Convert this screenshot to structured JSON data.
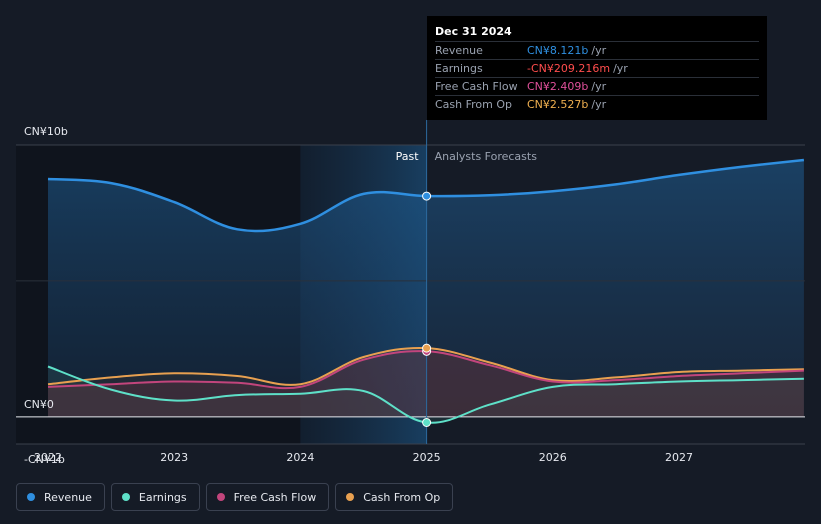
{
  "chart_data": {
    "type": "area",
    "title": "",
    "xlabel": "",
    "ylabel": "",
    "x_ticks": [
      "2022",
      "2023",
      "2024",
      "2025",
      "2026",
      "2027"
    ],
    "x_range": [
      2021.79,
      2027.99
    ],
    "y_range": [
      -1.0,
      10.0
    ],
    "y_ticks": [
      {
        "value": 10,
        "label": "CN¥10b"
      },
      {
        "value": 0,
        "label": "CN¥0"
      },
      {
        "value": -1,
        "label": "-CN¥1b"
      }
    ],
    "sections": {
      "past": "Past",
      "forecast": "Analysts Forecasts"
    },
    "split_x": 2025.0,
    "highlight_range": [
      2024.0,
      2025.0
    ],
    "series": [
      {
        "name": "Revenue",
        "color": "#2f8fe0",
        "points": [
          [
            2022.0,
            8.75
          ],
          [
            2022.5,
            8.6
          ],
          [
            2023.0,
            7.9
          ],
          [
            2023.5,
            6.9
          ],
          [
            2024.0,
            7.1
          ],
          [
            2024.5,
            8.2
          ],
          [
            2025.0,
            8.121
          ],
          [
            2025.5,
            8.15
          ],
          [
            2026.0,
            8.3
          ],
          [
            2026.5,
            8.55
          ],
          [
            2027.0,
            8.9
          ],
          [
            2027.5,
            9.2
          ],
          [
            2027.99,
            9.45
          ]
        ]
      },
      {
        "name": "Earnings",
        "color": "#5ee0c8",
        "points": [
          [
            2022.0,
            1.85
          ],
          [
            2022.5,
            1.0
          ],
          [
            2023.0,
            0.6
          ],
          [
            2023.5,
            0.8
          ],
          [
            2024.0,
            0.85
          ],
          [
            2024.5,
            0.95
          ],
          [
            2025.0,
            -0.209
          ],
          [
            2025.5,
            0.45
          ],
          [
            2026.0,
            1.1
          ],
          [
            2026.5,
            1.2
          ],
          [
            2027.0,
            1.3
          ],
          [
            2027.5,
            1.35
          ],
          [
            2027.99,
            1.4
          ]
        ]
      },
      {
        "name": "Free Cash Flow",
        "color": "#c2457c",
        "points": [
          [
            2022.0,
            1.1
          ],
          [
            2022.5,
            1.2
          ],
          [
            2023.0,
            1.3
          ],
          [
            2023.5,
            1.25
          ],
          [
            2024.0,
            1.1
          ],
          [
            2024.5,
            2.1
          ],
          [
            2025.0,
            2.409
          ],
          [
            2025.5,
            1.9
          ],
          [
            2026.0,
            1.3
          ],
          [
            2026.5,
            1.35
          ],
          [
            2027.0,
            1.5
          ],
          [
            2027.5,
            1.6
          ],
          [
            2027.99,
            1.7
          ]
        ]
      },
      {
        "name": "Cash From Op",
        "color": "#e8a050",
        "points": [
          [
            2022.0,
            1.2
          ],
          [
            2022.5,
            1.45
          ],
          [
            2023.0,
            1.6
          ],
          [
            2023.5,
            1.5
          ],
          [
            2024.0,
            1.2
          ],
          [
            2024.5,
            2.2
          ],
          [
            2025.0,
            2.527
          ],
          [
            2025.5,
            2.0
          ],
          [
            2026.0,
            1.35
          ],
          [
            2026.5,
            1.45
          ],
          [
            2027.0,
            1.65
          ],
          [
            2027.5,
            1.7
          ],
          [
            2027.99,
            1.75
          ]
        ]
      }
    ]
  },
  "tooltip": {
    "date": "Dec 31 2024",
    "rows": [
      {
        "name": "Revenue",
        "value": "CN¥8.121b",
        "unit": "/yr",
        "color": "#2f8fe0"
      },
      {
        "name": "Earnings",
        "value": "-CN¥209.216m",
        "unit": "/yr",
        "color": "#ff4d4d"
      },
      {
        "name": "Free Cash Flow",
        "value": "CN¥2.409b",
        "unit": "/yr",
        "color": "#e0509a"
      },
      {
        "name": "Cash From Op",
        "value": "CN¥2.527b",
        "unit": "/yr",
        "color": "#f0b050"
      }
    ]
  },
  "legend": [
    {
      "label": "Revenue",
      "color": "#2f8fe0"
    },
    {
      "label": "Earnings",
      "color": "#5ee0c8"
    },
    {
      "label": "Free Cash Flow",
      "color": "#c2457c"
    },
    {
      "label": "Cash From Op",
      "color": "#e8a050"
    }
  ]
}
